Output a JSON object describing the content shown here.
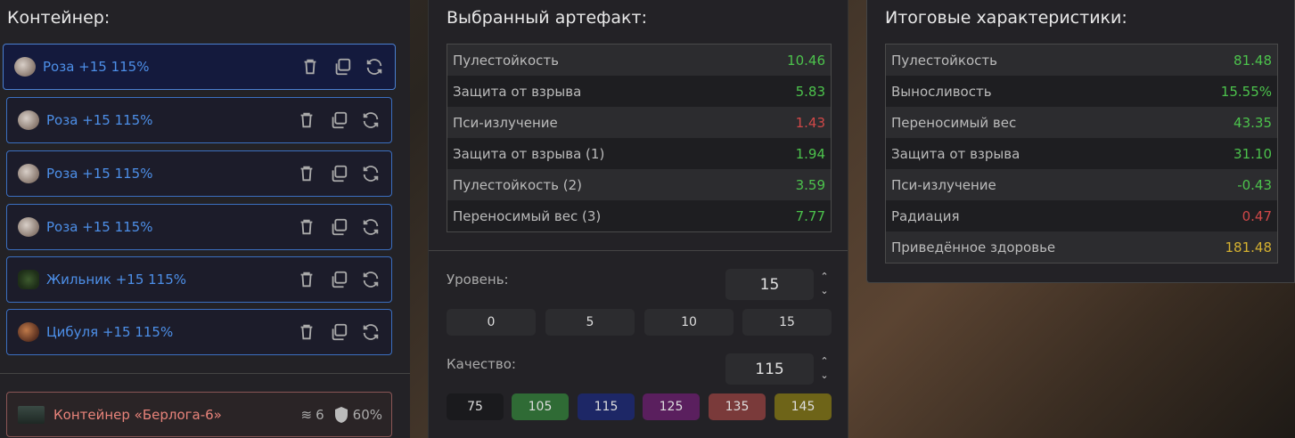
{
  "container_panel": {
    "title": "Контейнер:",
    "items": [
      {
        "name": "Роза +15 115%",
        "icon": "rose-artifact-icon",
        "selected": true
      },
      {
        "name": "Роза +15 115%",
        "icon": "rose-artifact-icon"
      },
      {
        "name": "Роза +15 115%",
        "icon": "rose-artifact-icon"
      },
      {
        "name": "Роза +15 115%",
        "icon": "rose-artifact-icon"
      },
      {
        "name": "Жильник +15 115%",
        "icon": "zhilnik-artifact-icon"
      },
      {
        "name": "Цибуля +15 115%",
        "icon": "cibulya-artifact-icon"
      }
    ],
    "container": {
      "name": "Контейнер «Берлога-6»",
      "slots": "6",
      "protection": "60%"
    }
  },
  "selected_artifact": {
    "title": "Выбранный артефакт:",
    "stats": [
      {
        "label": "Пулестойкость",
        "value": "10.46",
        "color": "#4cc24c"
      },
      {
        "label": "Защита от взрыва",
        "value": "5.83",
        "color": "#4cc24c"
      },
      {
        "label": "Пси-излучение",
        "value": "1.43",
        "color": "#d04848"
      },
      {
        "label": "Защита от взрыва (1)",
        "value": "1.94",
        "color": "#4cc24c"
      },
      {
        "label": "Пулестойкость (2)",
        "value": "3.59",
        "color": "#4cc24c"
      },
      {
        "label": "Переносимый вес (3)",
        "value": "7.77",
        "color": "#4cc24c"
      }
    ],
    "level": {
      "label": "Уровень:",
      "value": "15",
      "presets": [
        "0",
        "5",
        "10",
        "15"
      ]
    },
    "quality": {
      "label": "Качество:",
      "value": "115",
      "presets": [
        {
          "label": "75",
          "color": "#1a1a1d"
        },
        {
          "label": "105",
          "color": "#2f6b35"
        },
        {
          "label": "115",
          "color": "#1d2766"
        },
        {
          "label": "125",
          "color": "#5a1f5e"
        },
        {
          "label": "135",
          "color": "#7a3a3a"
        },
        {
          "label": "145",
          "color": "#6e6418"
        }
      ]
    }
  },
  "total_stats": {
    "title": "Итоговые характеристики:",
    "stats": [
      {
        "label": "Пулестойкость",
        "value": "81.48",
        "color": "#4cc24c"
      },
      {
        "label": "Выносливость",
        "value": "15.55%",
        "color": "#4cc24c"
      },
      {
        "label": "Переносимый вес",
        "value": "43.35",
        "color": "#4cc24c"
      },
      {
        "label": "Защита от взрыва",
        "value": "31.10",
        "color": "#4cc24c"
      },
      {
        "label": "Пси-излучение",
        "value": "-0.43",
        "color": "#4cc24c"
      },
      {
        "label": "Радиация",
        "value": "0.47",
        "color": "#d04848"
      },
      {
        "label": "Приведённое здоровье",
        "value": "181.48",
        "color": "#d4b030"
      }
    ]
  }
}
